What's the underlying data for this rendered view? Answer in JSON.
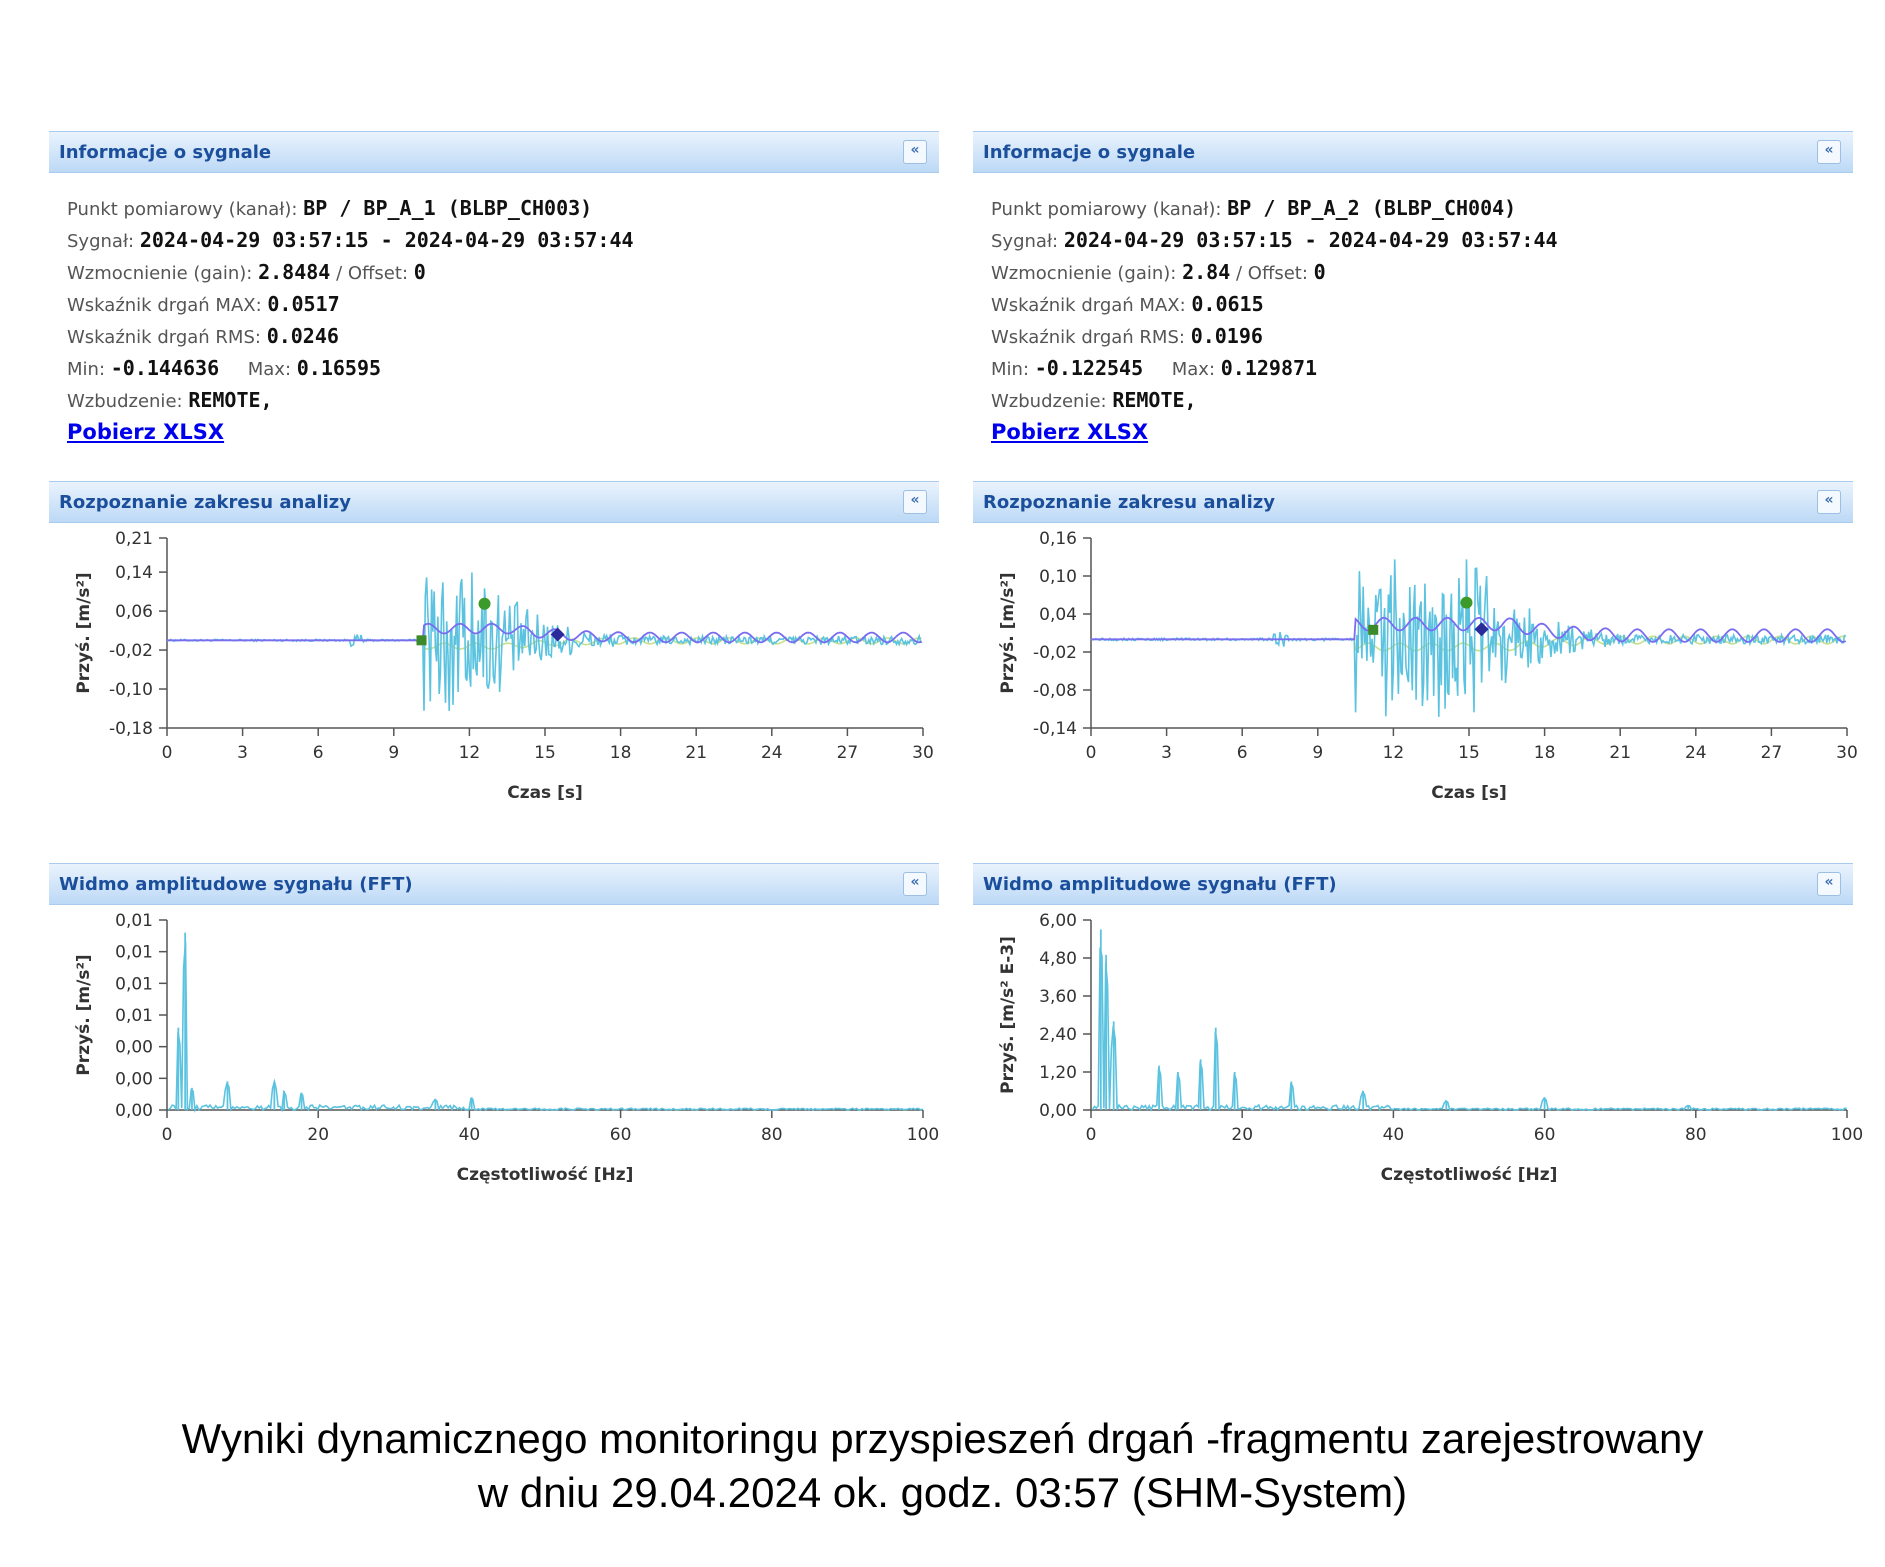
{
  "panels": [
    {
      "info": {
        "header": "Informacje o sygnale",
        "lines": [
          {
            "label": "Punkt pomiarowy (kanał):",
            "value": "BP / BP_A_1 (BLBP_CH003)"
          },
          {
            "label": "Sygnał:",
            "value": "2024-04-29 03:57:15 - 2024-04-29 03:57:44"
          },
          {
            "label": "Wzmocnienie (gain):",
            "value": "2.8484",
            "label2": "/ Offset:",
            "value2": "0"
          },
          {
            "label": "Wskaźnik drgań MAX:",
            "value": "0.0517"
          },
          {
            "label": "Wskaźnik drgań RMS:",
            "value": "0.0246"
          },
          {
            "label": "Min:",
            "value": "-0.144636",
            "label2": "Max:",
            "value2": "0.16595"
          },
          {
            "label": "Wzbudzenie:",
            "value": "REMOTE,"
          }
        ],
        "link": "Pobierz XLSX"
      },
      "time_header": "Rozpoznanie zakresu analizy",
      "fft_header": "Widmo amplitudowe sygnału (FFT)"
    },
    {
      "info": {
        "header": "Informacje o sygnale",
        "lines": [
          {
            "label": "Punkt pomiarowy (kanał):",
            "value": "BP / BP_A_2 (BLBP_CH004)"
          },
          {
            "label": "Sygnał:",
            "value": "2024-04-29 03:57:15 - 2024-04-29 03:57:44"
          },
          {
            "label": "Wzmocnienie (gain):",
            "value": "2.84",
            "label2": "/ Offset:",
            "value2": "0"
          },
          {
            "label": "Wskaźnik drgań MAX:",
            "value": "0.0615"
          },
          {
            "label": "Wskaźnik drgań RMS:",
            "value": "0.0196"
          },
          {
            "label": "Min:",
            "value": "-0.122545",
            "label2": "Max:",
            "value2": "0.129871"
          },
          {
            "label": "Wzbudzenie:",
            "value": "REMOTE,"
          }
        ],
        "link": "Pobierz XLSX"
      },
      "time_header": "Rozpoznanie zakresu analizy",
      "fft_header": "Widmo amplitudowe sygnału (FFT)"
    }
  ],
  "chart_data": [
    {
      "type": "line",
      "xlabel": "Czas [s]",
      "ylabel": "Przyś. [m/s²]",
      "xlim": [
        0,
        30
      ],
      "ylim": [
        -0.18,
        0.21
      ],
      "xticks": [
        "0",
        "3",
        "6",
        "9",
        "12",
        "15",
        "18",
        "21",
        "24",
        "27",
        "30"
      ],
      "yticks": [
        "0,21",
        "0,14",
        "0,06",
        "-0,02",
        "-0,10",
        "-0,18"
      ],
      "ytick_values": [
        0.21,
        0.14,
        0.06,
        -0.02,
        -0.1,
        -0.18
      ],
      "colors": {
        "signal": "#5bc3e0",
        "envelope": "#7a6cf0",
        "trend": "#c8e08a"
      },
      "burst": {
        "start": 10.2,
        "peak_region": [
          10.5,
          12.5
        ],
        "decay_end": 30,
        "max": 0.16595,
        "min": -0.144636
      },
      "markers": [
        {
          "x": 10.1,
          "y": 0.0,
          "shape": "square",
          "color": "#3c8a2a"
        },
        {
          "x": 12.6,
          "y": 0.075,
          "shape": "circle",
          "color": "#3c9a2a"
        },
        {
          "x": 15.5,
          "y": 0.012,
          "shape": "diamond",
          "color": "#2a2a9a"
        }
      ]
    },
    {
      "type": "line",
      "xlabel": "Czas [s]",
      "ylabel": "Przyś. [m/s²]",
      "xlim": [
        0,
        30
      ],
      "ylim": [
        -0.14,
        0.16
      ],
      "xticks": [
        "0",
        "3",
        "6",
        "9",
        "12",
        "15",
        "18",
        "21",
        "24",
        "27",
        "30"
      ],
      "yticks": [
        "0,16",
        "0,10",
        "0,04",
        "-0,02",
        "-0,08",
        "-0,14"
      ],
      "ytick_values": [
        0.16,
        0.1,
        0.04,
        -0.02,
        -0.08,
        -0.14
      ],
      "colors": {
        "signal": "#5bc3e0",
        "envelope": "#7a6cf0",
        "trend": "#c8e08a"
      },
      "burst": {
        "start": 10.5,
        "peak_region": [
          13.0,
          15.5
        ],
        "decay_end": 30,
        "max": 0.129871,
        "min": -0.122545
      },
      "markers": [
        {
          "x": 11.2,
          "y": 0.015,
          "shape": "square",
          "color": "#3c8a2a"
        },
        {
          "x": 14.9,
          "y": 0.058,
          "shape": "circle",
          "color": "#3c9a2a"
        },
        {
          "x": 15.5,
          "y": 0.016,
          "shape": "diamond",
          "color": "#2a2a9a"
        }
      ]
    },
    {
      "type": "line",
      "xlabel": "Częstotliwość [Hz]",
      "ylabel": "Przyś. [m/s²]",
      "xlim": [
        0,
        100
      ],
      "ylim": [
        0,
        0.012
      ],
      "xticks": [
        "0",
        "20",
        "40",
        "60",
        "80",
        "100"
      ],
      "yticks": [
        "0,01",
        "0,01",
        "0,01",
        "0,01",
        "0,00",
        "0,00",
        "0,00"
      ],
      "ytick_values": [
        0.012,
        0.01,
        0.008,
        0.006,
        0.004,
        0.002,
        0.0
      ],
      "colors": {
        "signal": "#5bc3e0"
      },
      "peaks": [
        {
          "x": 1.5,
          "y": 0.0052
        },
        {
          "x": 2.4,
          "y": 0.0112
        },
        {
          "x": 3.3,
          "y": 0.0014
        },
        {
          "x": 8.0,
          "y": 0.0018
        },
        {
          "x": 14.2,
          "y": 0.0018
        },
        {
          "x": 15.5,
          "y": 0.0012
        },
        {
          "x": 17.8,
          "y": 0.0011
        },
        {
          "x": 35.5,
          "y": 0.0007
        },
        {
          "x": 40.3,
          "y": 0.0008
        }
      ]
    },
    {
      "type": "line",
      "xlabel": "Częstotliwość [Hz]",
      "ylabel": "Przyś. [m/s² E-3]",
      "xlim": [
        0,
        100
      ],
      "ylim": [
        0,
        6.0
      ],
      "xticks": [
        "0",
        "20",
        "40",
        "60",
        "80",
        "100"
      ],
      "yticks": [
        "6,00",
        "4,80",
        "3,60",
        "2,40",
        "1,20",
        "0,00"
      ],
      "ytick_values": [
        6.0,
        4.8,
        3.6,
        2.4,
        1.2,
        0.0
      ],
      "colors": {
        "signal": "#5bc3e0"
      },
      "peaks": [
        {
          "x": 1.3,
          "y": 5.7
        },
        {
          "x": 2.0,
          "y": 4.9
        },
        {
          "x": 3.0,
          "y": 2.8
        },
        {
          "x": 9.0,
          "y": 1.4
        },
        {
          "x": 11.5,
          "y": 1.2
        },
        {
          "x": 14.5,
          "y": 1.6
        },
        {
          "x": 16.5,
          "y": 2.6
        },
        {
          "x": 19.0,
          "y": 1.2
        },
        {
          "x": 26.5,
          "y": 0.9
        },
        {
          "x": 36.0,
          "y": 0.6
        },
        {
          "x": 47.0,
          "y": 0.3
        },
        {
          "x": 60.0,
          "y": 0.4
        },
        {
          "x": 79.0,
          "y": 0.15
        }
      ]
    }
  ],
  "caption": {
    "line1": "Wyniki dynamicznego monitoringu przyspieszeń drgań -fragmentu  zarejestrowany",
    "line2": "w dniu 29.04.2024 ok. godz. 03:57 (SHM-System)"
  }
}
